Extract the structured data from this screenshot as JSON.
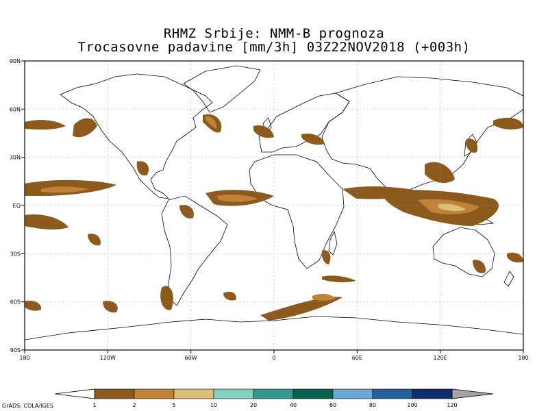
{
  "title": {
    "line1": "RHMZ Srbije: NMM-B prognoza",
    "line2": "Trocasovne padavine [mm/3h] 03Z22NOV2018 (+003h)"
  },
  "axes": {
    "x_ticks": [
      {
        "lon": -180,
        "label": "180"
      },
      {
        "lon": -120,
        "label": "120W"
      },
      {
        "lon": -60,
        "label": "60W"
      },
      {
        "lon": 0,
        "label": "0"
      },
      {
        "lon": 60,
        "label": "60E"
      },
      {
        "lon": 120,
        "label": "120E"
      },
      {
        "lon": 180,
        "label": "180"
      }
    ],
    "y_ticks": [
      {
        "lat": 90,
        "label": "90N"
      },
      {
        "lat": 60,
        "label": "60N"
      },
      {
        "lat": 30,
        "label": "30N"
      },
      {
        "lat": 0,
        "label": "EQ"
      },
      {
        "lat": -30,
        "label": "30S"
      },
      {
        "lat": -60,
        "label": "60S"
      },
      {
        "lat": -90,
        "label": "90S"
      }
    ],
    "lon_range": [
      -180,
      180
    ],
    "lat_range": [
      -90,
      90
    ],
    "grid": true
  },
  "colorbar": {
    "levels": [
      "1",
      "2",
      "5",
      "10",
      "20",
      "40",
      "60",
      "80",
      "100",
      "120"
    ],
    "colors": [
      "#8b5a1c",
      "#c08236",
      "#dcbf76",
      "#84d1c0",
      "#35988f",
      "#06614f",
      "#6aa8d6",
      "#23619a",
      "#0e2f69"
    ],
    "under_color": "#ffffff",
    "over_color": "#a3a3a3"
  },
  "footer": "GrADS: COLA/IGES",
  "precip_colors": {
    "light": "#8b5a1c",
    "moderate": "#c08236",
    "heavy": "#dcbf76",
    "very_heavy": "#84d1c0"
  }
}
